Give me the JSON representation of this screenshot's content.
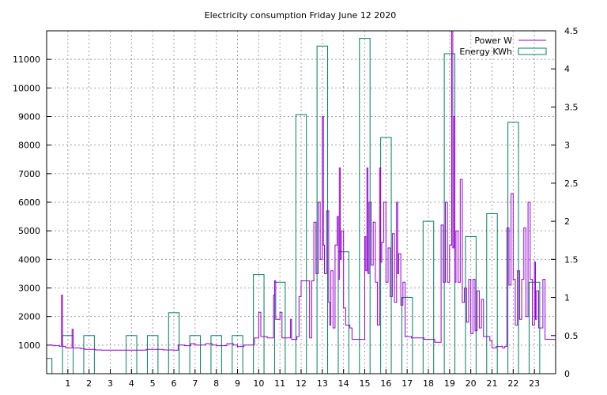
{
  "chart_data": {
    "type": "bar",
    "title": "Electricity consumption Friday June 12 2020",
    "xlabel": "",
    "ylabel": "",
    "y2label": "",
    "grid": true,
    "legend_position": "top-right",
    "x_ticks": [
      "1",
      "2",
      "3",
      "4",
      "5",
      "6",
      "7",
      "8",
      "9",
      "10",
      "11",
      "12",
      "13",
      "14",
      "15",
      "16",
      "17",
      "18",
      "19",
      "20",
      "21",
      "22",
      "23"
    ],
    "xlim": [
      0,
      24
    ],
    "ylim": [
      0,
      12000
    ],
    "y_ticks": [
      "1000",
      "2000",
      "3000",
      "4000",
      "5000",
      "6000",
      "7000",
      "8000",
      "9000",
      "10000",
      "11000"
    ],
    "y2lim": [
      0,
      4.5
    ],
    "y2_ticks": [
      "0",
      "0.5",
      "1",
      "1.5",
      "2",
      "2.5",
      "3",
      "3.5",
      "4",
      "4.5"
    ],
    "series": [
      {
        "name": "Power W",
        "type": "line",
        "axis": "left",
        "color": "#9400d3",
        "points": [
          [
            0.0,
            1000
          ],
          [
            0.3,
            980
          ],
          [
            0.6,
            960
          ],
          [
            0.7,
            2750
          ],
          [
            0.75,
            950
          ],
          [
            0.9,
            900
          ],
          [
            1.2,
            1550
          ],
          [
            1.25,
            900
          ],
          [
            1.6,
            880
          ],
          [
            1.8,
            850
          ],
          [
            2.0,
            850
          ],
          [
            2.3,
            830
          ],
          [
            2.6,
            820
          ],
          [
            3.0,
            820
          ],
          [
            3.5,
            820
          ],
          [
            4.0,
            820
          ],
          [
            4.5,
            820
          ],
          [
            4.7,
            850
          ],
          [
            5.0,
            850
          ],
          [
            5.5,
            830
          ],
          [
            6.0,
            820
          ],
          [
            6.2,
            1000
          ],
          [
            6.5,
            980
          ],
          [
            6.8,
            1050
          ],
          [
            7.0,
            1000
          ],
          [
            7.5,
            1050
          ],
          [
            7.8,
            1000
          ],
          [
            8.0,
            980
          ],
          [
            8.5,
            1050
          ],
          [
            8.8,
            1000
          ],
          [
            9.0,
            950
          ],
          [
            9.3,
            1000
          ],
          [
            9.5,
            1000
          ],
          [
            9.8,
            1250
          ],
          [
            10.0,
            2150
          ],
          [
            10.1,
            1300
          ],
          [
            10.4,
            1250
          ],
          [
            10.7,
            2750
          ],
          [
            10.75,
            3250
          ],
          [
            10.8,
            1900
          ],
          [
            11.0,
            2150
          ],
          [
            11.1,
            1250
          ],
          [
            11.3,
            1250
          ],
          [
            11.5,
            1900
          ],
          [
            11.55,
            1200
          ],
          [
            11.8,
            1300
          ],
          [
            11.9,
            2700
          ],
          [
            12.0,
            3250
          ],
          [
            12.3,
            3250
          ],
          [
            12.4,
            1250
          ],
          [
            12.5,
            3250
          ],
          [
            12.6,
            5300
          ],
          [
            12.7,
            3500
          ],
          [
            12.8,
            6000
          ],
          [
            12.9,
            4000
          ],
          [
            13.0,
            9000
          ],
          [
            13.05,
            4500
          ],
          [
            13.1,
            3500
          ],
          [
            13.2,
            5700
          ],
          [
            13.3,
            2500
          ],
          [
            13.35,
            1700
          ],
          [
            13.4,
            3600
          ],
          [
            13.5,
            1600
          ],
          [
            13.6,
            4500
          ],
          [
            13.7,
            5500
          ],
          [
            13.75,
            3300
          ],
          [
            13.8,
            7200
          ],
          [
            13.85,
            4000
          ],
          [
            13.9,
            5000
          ],
          [
            14.0,
            2300
          ],
          [
            14.1,
            1700
          ],
          [
            14.3,
            1600
          ],
          [
            14.4,
            1200
          ],
          [
            14.6,
            1200
          ],
          [
            14.8,
            1200
          ],
          [
            15.0,
            4800
          ],
          [
            15.05,
            3600
          ],
          [
            15.1,
            7200
          ],
          [
            15.15,
            3500
          ],
          [
            15.2,
            6000
          ],
          [
            15.3,
            3800
          ],
          [
            15.4,
            5300
          ],
          [
            15.5,
            3200
          ],
          [
            15.6,
            1700
          ],
          [
            15.7,
            7200
          ],
          [
            15.75,
            3900
          ],
          [
            15.8,
            4600
          ],
          [
            15.9,
            6000
          ],
          [
            16.0,
            3200
          ],
          [
            16.1,
            4400
          ],
          [
            16.2,
            2700
          ],
          [
            16.3,
            4900
          ],
          [
            16.4,
            2500
          ],
          [
            16.5,
            6000
          ],
          [
            16.55,
            3500
          ],
          [
            16.6,
            4200
          ],
          [
            16.7,
            2400
          ],
          [
            16.8,
            3200
          ],
          [
            16.9,
            1300
          ],
          [
            17.0,
            1300
          ],
          [
            17.2,
            1250
          ],
          [
            17.5,
            1250
          ],
          [
            17.8,
            1200
          ],
          [
            18.0,
            1200
          ],
          [
            18.3,
            1100
          ],
          [
            18.5,
            1100
          ],
          [
            18.6,
            5200
          ],
          [
            18.7,
            3200
          ],
          [
            18.8,
            6000
          ],
          [
            18.9,
            3200
          ],
          [
            19.0,
            4500
          ],
          [
            19.1,
            12000
          ],
          [
            19.15,
            4400
          ],
          [
            19.2,
            9000
          ],
          [
            19.25,
            3200
          ],
          [
            19.3,
            5000
          ],
          [
            19.4,
            3200
          ],
          [
            19.5,
            6800
          ],
          [
            19.6,
            2500
          ],
          [
            19.7,
            3000
          ],
          [
            19.8,
            1800
          ],
          [
            19.9,
            3300
          ],
          [
            20.0,
            1400
          ],
          [
            20.1,
            3300
          ],
          [
            20.2,
            1500
          ],
          [
            20.3,
            2900
          ],
          [
            20.4,
            1600
          ],
          [
            20.5,
            2600
          ],
          [
            20.6,
            1300
          ],
          [
            20.7,
            1300
          ],
          [
            20.9,
            1150
          ],
          [
            21.0,
            900
          ],
          [
            21.2,
            950
          ],
          [
            21.5,
            900
          ],
          [
            21.6,
            950
          ],
          [
            21.7,
            5100
          ],
          [
            21.8,
            3100
          ],
          [
            21.9,
            6300
          ],
          [
            22.0,
            3300
          ],
          [
            22.1,
            1700
          ],
          [
            22.2,
            3600
          ],
          [
            22.3,
            1900
          ],
          [
            22.4,
            3300
          ],
          [
            22.5,
            5100
          ],
          [
            22.6,
            2000
          ],
          [
            22.7,
            6000
          ],
          [
            22.8,
            3300
          ],
          [
            22.9,
            1700
          ],
          [
            23.0,
            3900
          ],
          [
            23.05,
            1900
          ],
          [
            23.1,
            2900
          ],
          [
            23.2,
            1600
          ],
          [
            23.4,
            3300
          ],
          [
            23.5,
            1200
          ],
          [
            23.8,
            1200
          ],
          [
            24.0,
            1350
          ]
        ]
      },
      {
        "name": "Energy KWh",
        "type": "bar",
        "axis": "right",
        "color": "#008060",
        "categories": [
          "0",
          "1",
          "2",
          "3",
          "4",
          "5",
          "6",
          "7",
          "8",
          "9",
          "10",
          "11",
          "12",
          "13",
          "14",
          "15",
          "16",
          "17",
          "18",
          "19",
          "20",
          "21",
          "22",
          "23"
        ],
        "values": [
          0.2,
          0.5,
          0.5,
          0,
          0.5,
          0.5,
          0.8,
          0.5,
          0.5,
          0.5,
          1.3,
          1.2,
          3.4,
          4.3,
          1.6,
          4.4,
          3.1,
          1.0,
          2.0,
          4.2,
          1.8,
          2.1,
          3.3,
          1.2
        ]
      }
    ]
  }
}
